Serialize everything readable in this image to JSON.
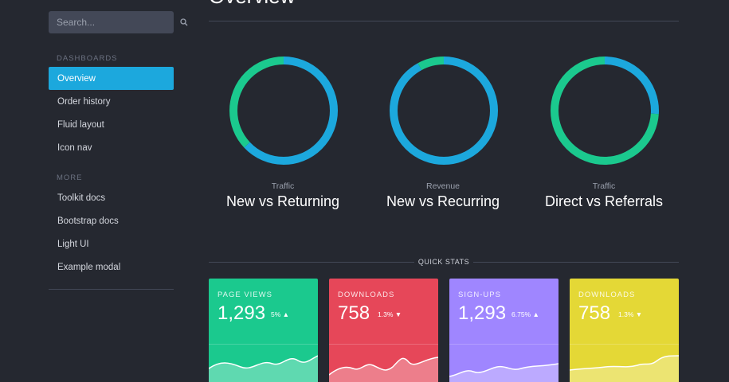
{
  "sidebar": {
    "search_placeholder": "Search...",
    "sections": [
      {
        "header": "Dashboards",
        "items": [
          "Overview",
          "Order history",
          "Fluid layout",
          "Icon nav"
        ]
      },
      {
        "header": "More",
        "items": [
          "Toolkit docs",
          "Bootstrap docs",
          "Light UI",
          "Example modal"
        ]
      }
    ],
    "active_item": "Overview"
  },
  "main": {
    "title": "Overview",
    "donuts": [
      {
        "label": "Traffic",
        "title": "New vs Returning",
        "segments": [
          {
            "color": "#1ca8dd",
            "share": 0.63
          },
          {
            "color": "#1bc98e",
            "share": 0.37
          }
        ]
      },
      {
        "label": "Revenue",
        "title": "New vs Recurring",
        "segments": [
          {
            "color": "#1ca8dd",
            "share": 0.92
          },
          {
            "color": "#1bc98e",
            "share": 0.08
          }
        ]
      },
      {
        "label": "Traffic",
        "title": "Direct vs Referrals",
        "segments": [
          {
            "color": "#1ca8dd",
            "share": 0.26
          },
          {
            "color": "#1bc98e",
            "share": 0.74
          }
        ]
      }
    ],
    "quick_stats_label": "QUICK STATS",
    "stats": [
      {
        "name": "Page views",
        "value": "1,293",
        "delta": "5%",
        "trend": "up",
        "color": "#1bc98e"
      },
      {
        "name": "Downloads",
        "value": "758",
        "delta": "1.3%",
        "trend": "down",
        "color": "#e64759"
      },
      {
        "name": "Sign-ups",
        "value": "1,293",
        "delta": "6.75%",
        "trend": "up",
        "color": "#9f86ff"
      },
      {
        "name": "Downloads",
        "value": "758",
        "delta": "1.3%",
        "trend": "down",
        "color": "#e4d836"
      }
    ]
  }
}
